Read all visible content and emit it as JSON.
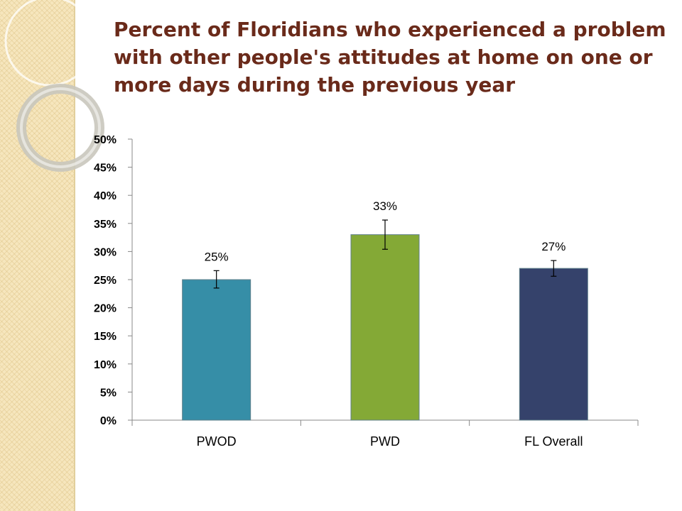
{
  "chart_data": {
    "type": "bar",
    "title": "Percent of Floridians who experienced a problem with other people's attitudes at home on one or more days during the previous year",
    "categories": [
      "PWOD",
      "PWD",
      "FL Overall"
    ],
    "values": [
      25,
      33,
      27
    ],
    "data_labels": [
      "25%",
      "33%",
      "27%"
    ],
    "error_bars": [
      [
        23.5,
        26.6
      ],
      [
        30.4,
        35.6
      ],
      [
        25.6,
        28.4
      ]
    ],
    "colors": [
      "#368ea7",
      "#84a936",
      "#35426b"
    ],
    "ylim": [
      0,
      50
    ],
    "yticks": [
      0,
      5,
      10,
      15,
      20,
      25,
      30,
      35,
      40,
      45,
      50
    ],
    "ytick_labels": [
      "0%",
      "5%",
      "10%",
      "15%",
      "20%",
      "25%",
      "30%",
      "35%",
      "40%",
      "45%",
      "50%"
    ],
    "xlabel": "",
    "ylabel": "",
    "grid": false,
    "legend": "none"
  }
}
